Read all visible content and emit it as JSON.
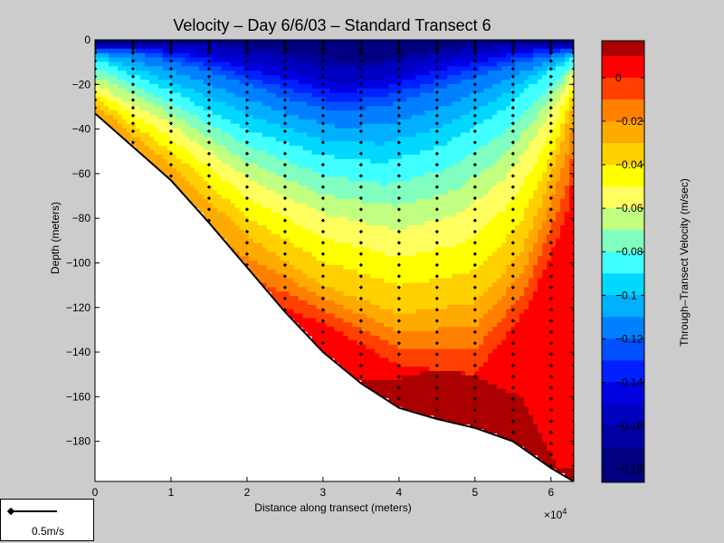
{
  "chart_data": {
    "type": "heatmap",
    "title": "Velocity – Day 6/6/03 – Standard Transect 6",
    "xlabel": "Distance along transect (meters)",
    "ylabel": "Depth (meters)",
    "x_exponent_label": "×10",
    "x_exponent_power": "4",
    "xlim": [
      0,
      6.3
    ],
    "ylim": [
      -198,
      0
    ],
    "x_ticks": [
      0,
      1,
      2,
      3,
      4,
      5,
      6
    ],
    "y_ticks": [
      0,
      -20,
      -40,
      -60,
      -80,
      -100,
      -120,
      -140,
      -160,
      -180
    ],
    "colorbar": {
      "label": "Through–Transect Velocity (m/sec)",
      "range": [
        -0.186,
        0.017
      ],
      "ticks": [
        0,
        -0.02,
        -0.04,
        -0.06,
        -0.08,
        -0.1,
        -0.12,
        -0.14,
        -0.16,
        -0.18
      ],
      "tick_labels": [
        "0",
        "−0.02",
        "−0.04",
        "−0.06",
        "−0.08",
        "−0.1",
        "−0.12",
        "−0.14",
        "−0.16",
        "−0.18"
      ],
      "levels": [
        0.01,
        0.0,
        -0.01,
        -0.02,
        -0.03,
        -0.04,
        -0.05,
        -0.06,
        -0.07,
        -0.08,
        -0.09,
        -0.1,
        -0.11,
        -0.12,
        -0.13,
        -0.14,
        -0.15,
        -0.16,
        -0.17,
        -0.18
      ],
      "colors": [
        "#aa0000",
        "#ff0000",
        "#ff4000",
        "#ff8000",
        "#ffaa00",
        "#ffd000",
        "#ffff00",
        "#ffff60",
        "#c0ff80",
        "#80ffc0",
        "#40ffff",
        "#00d8ff",
        "#00b0ff",
        "#0080ff",
        "#0050ff",
        "#0020ff",
        "#0000e0",
        "#0000c0",
        "#0000a0",
        "#000080"
      ]
    },
    "bottom_profile": [
      [
        0,
        -33
      ],
      [
        0.5,
        -48
      ],
      [
        1,
        -63
      ],
      [
        1.5,
        -82
      ],
      [
        2,
        -102
      ],
      [
        2.5,
        -122
      ],
      [
        3,
        -140
      ],
      [
        3.5,
        -154
      ],
      [
        4,
        -165
      ],
      [
        4.5,
        -170
      ],
      [
        5,
        -174
      ],
      [
        5.5,
        -180
      ],
      [
        6,
        -192
      ],
      [
        6.3,
        -198
      ]
    ],
    "velocity_contours": [
      {
        "level": -0.18,
        "depth": [
          [
            2.2,
            -1.5
          ],
          [
            2.8,
            -4
          ],
          [
            3.5,
            -5
          ],
          [
            4.2,
            -3
          ],
          [
            4.8,
            -1.5
          ]
        ]
      },
      {
        "level": -0.17,
        "depth": [
          [
            1.8,
            -1.5
          ],
          [
            2.5,
            -5
          ],
          [
            3.2,
            -9
          ],
          [
            3.8,
            -9
          ],
          [
            4.4,
            -5
          ],
          [
            5.1,
            -1.5
          ]
        ]
      },
      {
        "level": -0.16,
        "depth": [
          [
            1.4,
            -2
          ],
          [
            2.2,
            -6
          ],
          [
            3,
            -12
          ],
          [
            3.5,
            -13
          ],
          [
            4.2,
            -8
          ],
          [
            5.4,
            -2
          ]
        ]
      },
      {
        "level": -0.15,
        "depth": [
          [
            1,
            -3
          ],
          [
            1.8,
            -8
          ],
          [
            2.6,
            -14
          ],
          [
            3.2,
            -20
          ],
          [
            3.8,
            -17
          ],
          [
            4.5,
            -10
          ],
          [
            5.7,
            -3
          ]
        ]
      },
      {
        "level": -0.12,
        "depth": [
          [
            0.4,
            -5
          ],
          [
            1.5,
            -14
          ],
          [
            2.5,
            -26
          ],
          [
            3.2,
            -32
          ],
          [
            3.8,
            -30
          ],
          [
            4.6,
            -21
          ],
          [
            5.4,
            -12
          ],
          [
            6.2,
            -5
          ]
        ]
      },
      {
        "level": -0.09,
        "depth": [
          [
            0.1,
            -10
          ],
          [
            1,
            -23
          ],
          [
            2,
            -40
          ],
          [
            3,
            -52
          ],
          [
            3.8,
            -55
          ],
          [
            4.6,
            -47
          ],
          [
            5.3,
            -33
          ],
          [
            5.9,
            -16
          ],
          [
            6.3,
            -8
          ]
        ]
      },
      {
        "level": -0.06,
        "depth": [
          [
            0,
            -20
          ],
          [
            1,
            -38
          ],
          [
            2,
            -62
          ],
          [
            3,
            -78
          ],
          [
            4,
            -85
          ],
          [
            4.8,
            -78
          ],
          [
            5.4,
            -62
          ],
          [
            5.9,
            -38
          ],
          [
            6.3,
            -15
          ]
        ]
      },
      {
        "level": -0.03,
        "depth": [
          [
            0,
            -29
          ],
          [
            1,
            -56
          ],
          [
            2,
            -88
          ],
          [
            3,
            -110
          ],
          [
            4,
            -123
          ],
          [
            5,
            -118
          ],
          [
            5.6,
            -96
          ],
          [
            6,
            -62
          ],
          [
            6.3,
            -28
          ]
        ]
      },
      {
        "level": 0.0,
        "depth": [
          [
            2.3,
            -118
          ],
          [
            3,
            -127
          ],
          [
            4,
            -146
          ],
          [
            5,
            -150
          ],
          [
            5.7,
            -120
          ],
          [
            6.2,
            -80
          ],
          [
            6.3,
            -58
          ]
        ]
      },
      {
        "level": 0.01,
        "depth": [
          [
            3.5,
            -153
          ],
          [
            4,
            -152
          ],
          [
            4.5,
            -147
          ],
          [
            5,
            -151
          ],
          [
            5.6,
            -160
          ],
          [
            5.9,
            -180
          ],
          [
            6.1,
            -193
          ]
        ]
      }
    ],
    "measurement_stations": [
      0,
      0.5,
      1,
      1.5,
      2,
      2.5,
      3,
      3.5,
      4,
      4.5,
      5,
      5.5,
      6,
      6.3
    ]
  },
  "scale_legend": {
    "label": "0.5m/s"
  }
}
